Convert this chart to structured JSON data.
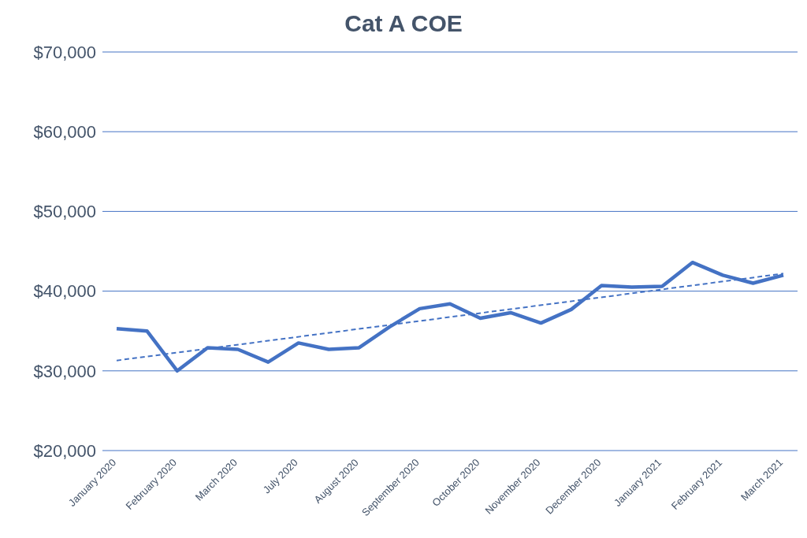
{
  "chart_data": {
    "type": "line",
    "title": "Cat A COE",
    "categories": [
      "January 2020",
      null,
      "February 2020",
      null,
      "March 2020",
      null,
      "July 2020",
      null,
      "August 2020",
      null,
      "September 2020",
      null,
      "October 2020",
      null,
      "November 2020",
      null,
      "December 2020",
      null,
      "January 2021",
      null,
      "February 2021",
      null,
      "March 2021"
    ],
    "series": [
      {
        "color": "#4472c4",
        "line_style": "solid",
        "values": [
          35300,
          35000,
          30000,
          32900,
          32700,
          31100,
          33500,
          32700,
          32900,
          35500,
          37800,
          38400,
          36600,
          37300,
          36000,
          37700,
          40700,
          40500,
          40600,
          43600,
          42000,
          41000,
          42000
        ]
      },
      {
        "type": "line",
        "color": "#4472c4",
        "line_style": "dashed",
        "values": [
          31300,
          null,
          null,
          null,
          null,
          null,
          null,
          null,
          null,
          null,
          null,
          null,
          null,
          null,
          null,
          null,
          null,
          null,
          null,
          null,
          null,
          null,
          42200
        ]
      }
    ],
    "ylim": [
      20000,
      70000
    ],
    "yticks": [
      {
        "value": 20000,
        "label": "$20,000"
      },
      {
        "value": 30000,
        "label": "$30,000"
      },
      {
        "value": 40000,
        "label": "$40,000"
      },
      {
        "value": 50000,
        "label": "$50,000"
      },
      {
        "value": 60000,
        "label": "$60,000"
      },
      {
        "value": 70000,
        "label": "$70,000"
      }
    ],
    "grid": "y",
    "legend": false,
    "marker": "none"
  }
}
